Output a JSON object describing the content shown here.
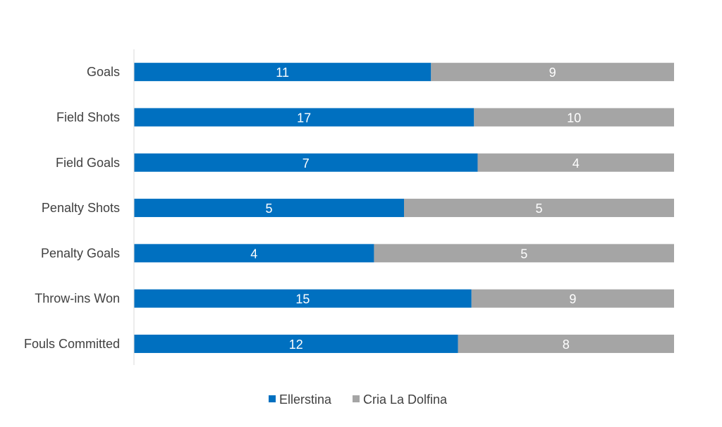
{
  "chart_data": {
    "type": "bar",
    "stacked": "percent",
    "orientation": "horizontal",
    "title": "",
    "xlabel": "",
    "ylabel": "",
    "categories": [
      "Goals",
      "Field Shots",
      "Field Goals",
      "Penalty Shots",
      "Penalty Goals",
      "Throw-ins Won",
      "Fouls Committed"
    ],
    "series": [
      {
        "name": "Ellerstina",
        "color": "#0070C0",
        "values": [
          11,
          17,
          7,
          5,
          4,
          15,
          12
        ]
      },
      {
        "name": "Cria La Dolfina",
        "color": "#A5A5A5",
        "values": [
          9,
          10,
          4,
          5,
          5,
          9,
          8
        ]
      }
    ],
    "grid": false,
    "legend": "bottom"
  }
}
